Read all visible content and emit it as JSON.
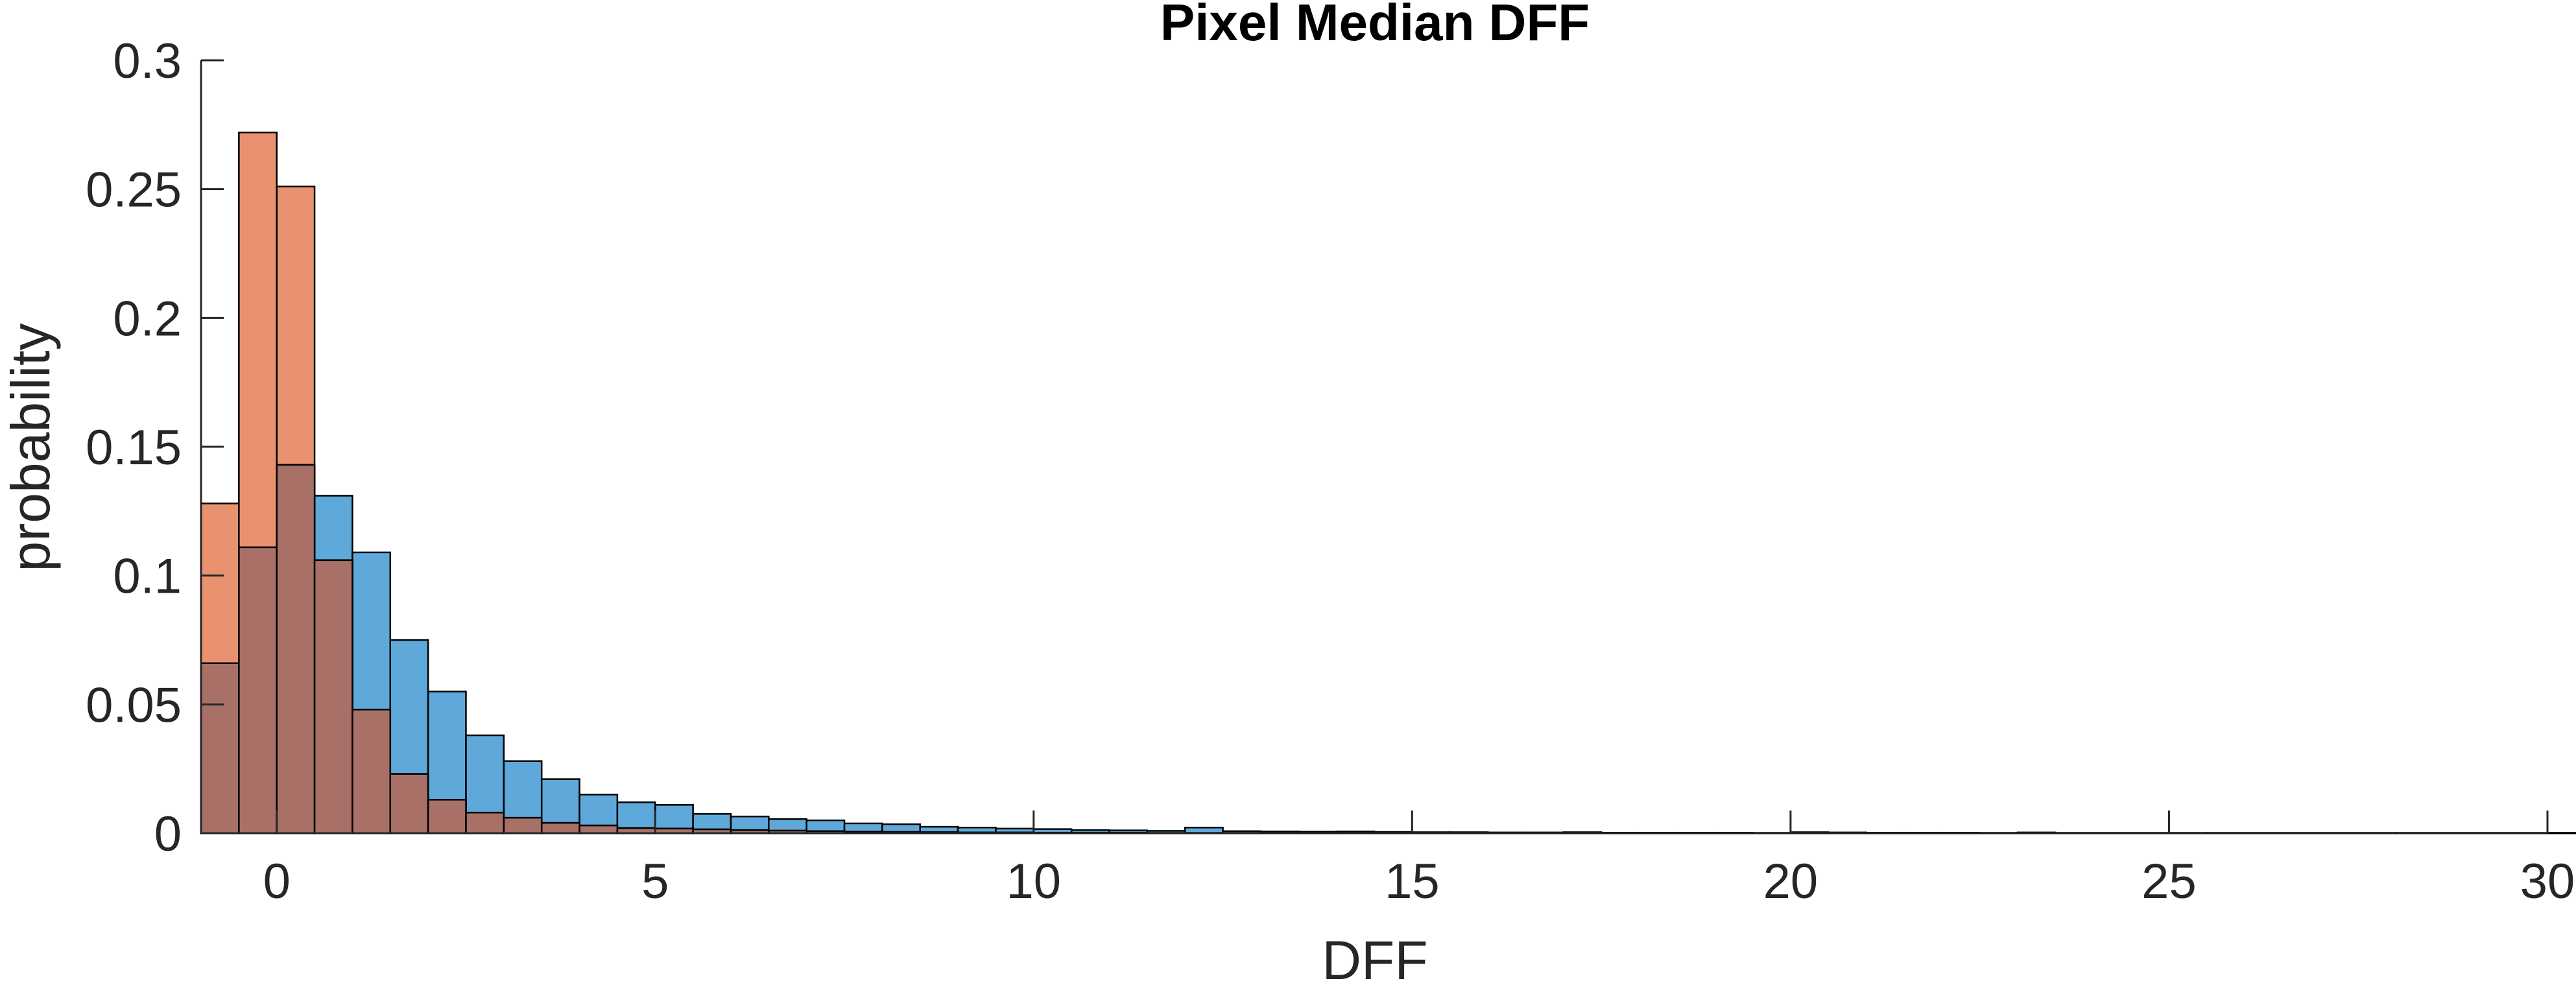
{
  "chart_data": {
    "type": "bar",
    "title": "Pixel Median DFF",
    "xlabel": "DFF",
    "ylabel": "probability",
    "xlim": [
      -1,
      30
    ],
    "ylim": [
      0,
      0.3
    ],
    "xticks": [
      "0",
      "5",
      "10",
      "15",
      "20",
      "25",
      "30"
    ],
    "yticks": [
      "0",
      "0.05",
      "0.1",
      "0.15",
      "0.2",
      "0.25",
      "0.3"
    ],
    "bin_start": -1,
    "bin_width": 0.5,
    "overlap_color": "#a87066",
    "series": [
      {
        "color": "#5ea9d9",
        "values": [
          0.066,
          0.111,
          0.143,
          0.131,
          0.109,
          0.075,
          0.055,
          0.038,
          0.028,
          0.021,
          0.015,
          0.012,
          0.011,
          0.0075,
          0.0065,
          0.0055,
          0.005,
          0.0038,
          0.0035,
          0.0025,
          0.0022,
          0.0018,
          0.0016,
          0.0012,
          0.0011,
          0.0009,
          0.0022,
          0.0008,
          0.0007,
          0.0006,
          0.0007,
          0.0005,
          0.0004,
          0.0004,
          0.0003,
          0.0003,
          0.0004,
          0.0002,
          0.0002,
          0.0002,
          0.0002,
          0.0001,
          0.0004,
          0.0003,
          0.0002,
          0.0002,
          0.0002,
          0.0001,
          0.0003,
          0.0001,
          0.0001,
          0.0001,
          0.0001,
          0.0001,
          0.0001,
          0.0001,
          0.0001,
          0.0001,
          0.0001,
          0.0001,
          0.0001,
          0.0001,
          0.0001,
          0.0001,
          0.0001,
          0.0001,
          0.0001,
          0.0001,
          0.0001,
          0.0001,
          0.0001,
          0.0001,
          0.0001,
          0.0001,
          0.0001,
          0.0001,
          0.0001,
          0.0001,
          0.0001,
          0.0001,
          0.0001,
          0.0001
        ]
      },
      {
        "color": "#e8926f",
        "values": [
          0.128,
          0.272,
          0.251,
          0.106,
          0.048,
          0.023,
          0.013,
          0.008,
          0.006,
          0.004,
          0.003,
          0.002,
          0.0018,
          0.0015,
          0.0012,
          0.001,
          0.0008,
          0.0006,
          0.0005,
          0.0004,
          0.0003,
          0.0003,
          0.0002,
          0.0002,
          0.0002,
          0.0001,
          0.0001,
          0.0001,
          0.0001,
          0.0001,
          0.0001,
          0.0001,
          0.0001,
          0.0001,
          0.0001,
          0.0001,
          0.0001,
          0.0001,
          0.0001,
          0.0001,
          0.0001,
          0.0001,
          0.0001,
          0.0001,
          0.0001,
          0.0001,
          0.0001,
          0.0001,
          0.0001,
          0.0001,
          0.0001,
          0.0001,
          0.0001,
          0.0001,
          0.0001,
          0.0001,
          0.0001,
          0.0001,
          0.0001,
          0.0001,
          0.0001,
          0.0001,
          0.0001,
          0.0001,
          0.0001,
          0.0001,
          0.0001,
          0.0001,
          0.0001,
          0.0001,
          0.0001,
          0.0001,
          0.0001,
          0.0001,
          0.0001,
          0.0001,
          0.0001,
          0.0001,
          0.0001,
          0.0001,
          0.0001,
          0.0001
        ]
      }
    ]
  }
}
